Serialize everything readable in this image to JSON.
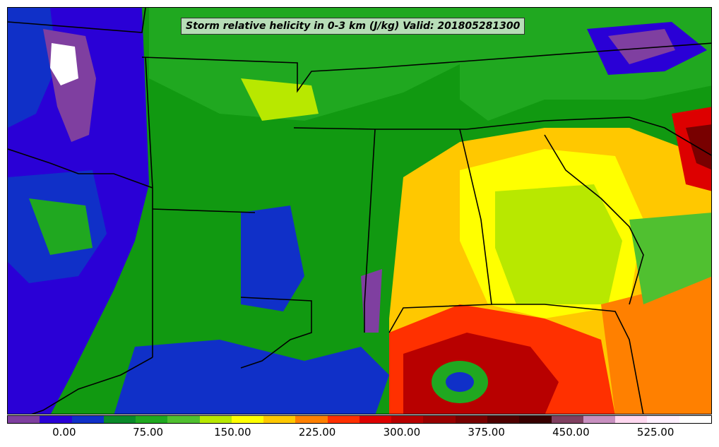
{
  "title": "Storm relative helicity in 0-3 km (J/kg) Valid: 201805281300",
  "colorbar": {
    "colors": [
      "#7f3fa0",
      "#2a00d6",
      "#1030c8",
      "#0a8a2a",
      "#20a820",
      "#50c030",
      "#b8e800",
      "#ffff00",
      "#ffc800",
      "#ff8000",
      "#ff3000",
      "#dd0000",
      "#b80000",
      "#980000",
      "#780000",
      "#500000",
      "#380000",
      "#804060",
      "#c890c0",
      "#ffd8f0",
      "#fff0ff",
      "#ffffff"
    ],
    "ticks": [
      "0.00",
      "75.00",
      "150.00",
      "225.00",
      "300.00",
      "375.00",
      "450.00",
      "525.00"
    ],
    "tick_fracs": [
      0.081,
      0.2,
      0.32,
      0.44,
      0.56,
      0.68,
      0.8,
      0.92
    ]
  }
}
